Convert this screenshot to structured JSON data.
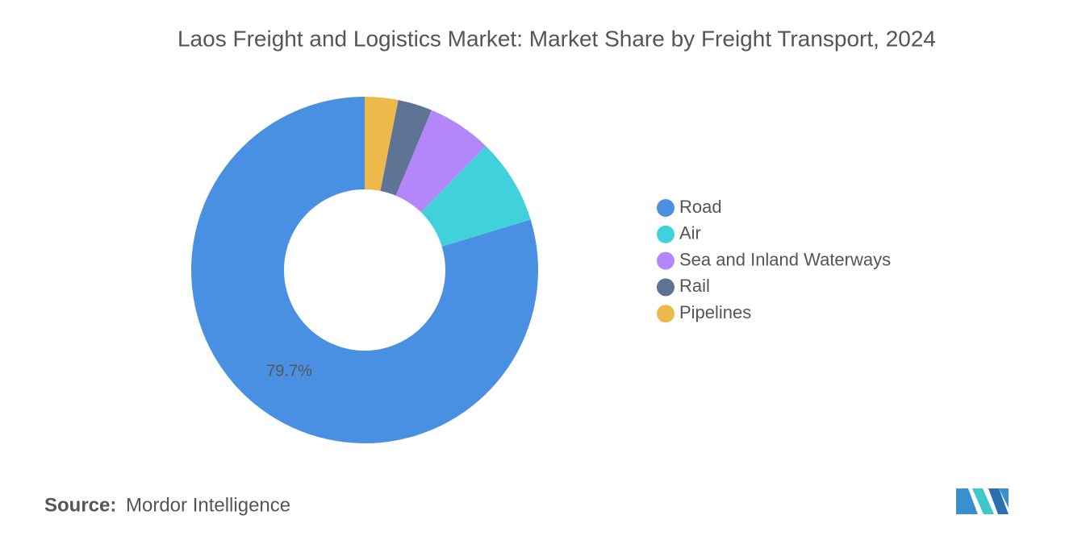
{
  "chart_data": {
    "type": "donut",
    "title": "Laos Freight and Logistics Market: Market Share by Freight Transport, 2024",
    "categories": [
      "Road",
      "Air",
      "Sea and Inland Waterways",
      "Rail",
      "Pipelines"
    ],
    "values": [
      79.7,
      8.0,
      6.0,
      3.2,
      3.1
    ],
    "value_labels": [
      "79.7%",
      null,
      null,
      null,
      null
    ],
    "colors": [
      "#4a90e2",
      "#40d1db",
      "#b387fa",
      "#5f7494",
      "#edb94a"
    ],
    "legend": "right"
  },
  "source": {
    "label": "Source:",
    "text": "Mordor Intelligence"
  }
}
